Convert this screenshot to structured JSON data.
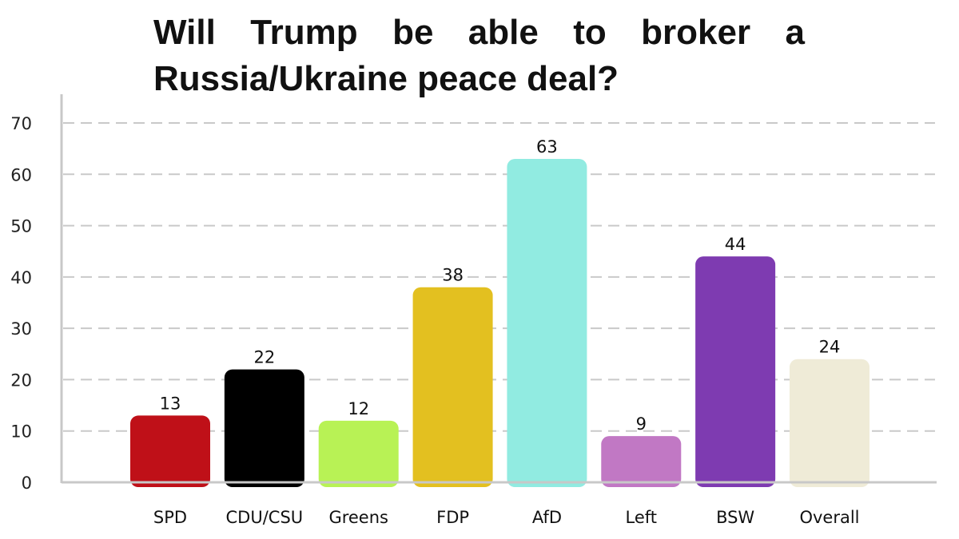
{
  "chart_data": {
    "type": "bar",
    "title": "Will Trump be able to broker a Russia/Ukraine peace deal?",
    "categories": [
      "SPD",
      "CDU/CSU",
      "Greens",
      "FDP",
      "AfD",
      "Left",
      "BSW",
      "Overall"
    ],
    "values": [
      13,
      22,
      12,
      38,
      63,
      9,
      44,
      24
    ],
    "colors": [
      "#bf1018",
      "#000000",
      "#b8f255",
      "#e3c020",
      "#91ebe1",
      "#c178c4",
      "#7e3bb1",
      "#efebd7"
    ],
    "ylim": [
      0,
      70
    ],
    "yticks": [
      0,
      10,
      20,
      30,
      40,
      50,
      60,
      70
    ],
    "grid": true,
    "grid_style": "dashed",
    "data_labels": true
  }
}
